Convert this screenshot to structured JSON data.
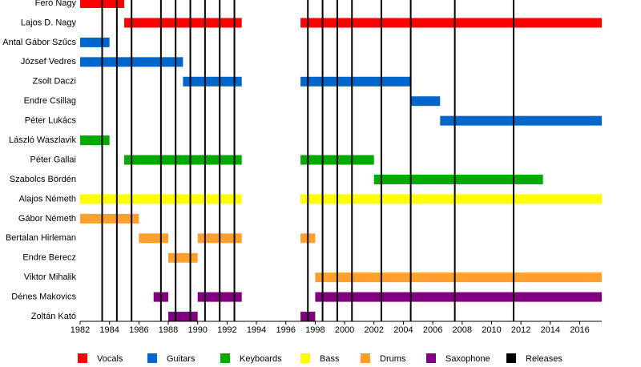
{
  "chart_data": {
    "type": "timeline",
    "categories": [
      "Feró Nagy",
      "Lajos D. Nagy",
      "Antal Gábor Szűcs",
      "József Vedres",
      "Zsolt Daczi",
      "Endre Csillag",
      "Péter Lukács",
      "László Waszlavik",
      "Péter Gallai",
      "Szabolcs Bördén",
      "Alajos Németh",
      "Gábor Németh",
      "Bertalan Hirleman",
      "Endre Berecz",
      "Viktor Mihalik",
      "Dénes Makovics",
      "Zoltán Kató"
    ],
    "series": [
      {
        "name": "Vocals",
        "color": "#ff0000",
        "values": [
          [
            [
              1982,
              1985
            ]
          ],
          [
            [
              1985,
              1993
            ],
            [
              1997,
              2017.5
            ]
          ],
          [],
          [],
          [],
          [],
          [],
          [],
          [],
          [],
          [],
          [],
          [],
          [],
          [],
          [],
          []
        ]
      },
      {
        "name": "Guitars",
        "color": "#0066cc",
        "values": [
          [],
          [],
          [
            [
              1982,
              1984
            ]
          ],
          [
            [
              1982,
              1989
            ]
          ],
          [
            [
              1989,
              1993
            ],
            [
              1997,
              2004.5
            ]
          ],
          [
            [
              2004.5,
              2006.5
            ]
          ],
          [
            [
              2006.5,
              2017.5
            ]
          ],
          [],
          [],
          [],
          [],
          [],
          [],
          [],
          [],
          [],
          []
        ]
      },
      {
        "name": "Keyboards",
        "color": "#00aa00",
        "values": [
          [],
          [],
          [],
          [],
          [],
          [],
          [],
          [
            [
              1982,
              1984
            ]
          ],
          [
            [
              1985,
              1993
            ],
            [
              1997,
              2002
            ]
          ],
          [
            [
              2002,
              2013.5
            ]
          ],
          [],
          [],
          [],
          [],
          [],
          [],
          []
        ]
      },
      {
        "name": "Bass",
        "color": "#ffff00",
        "values": [
          [],
          [],
          [],
          [],
          [],
          [],
          [],
          [],
          [],
          [],
          [
            [
              1982,
              1993
            ],
            [
              1997,
              2017.5
            ]
          ],
          [],
          [],
          [],
          [],
          [],
          []
        ]
      },
      {
        "name": "Drums",
        "color": "#ffa02e",
        "values": [
          [],
          [],
          [],
          [],
          [],
          [],
          [],
          [],
          [],
          [],
          [],
          [
            [
              1982,
              1986
            ]
          ],
          [
            [
              1986,
              1988
            ],
            [
              1990,
              1993
            ],
            [
              1997,
              1998
            ]
          ],
          [
            [
              1988,
              1990
            ]
          ],
          [
            [
              1998,
              2017.5
            ]
          ],
          [],
          []
        ]
      },
      {
        "name": "Saxophone",
        "color": "#800080",
        "values": [
          [],
          [],
          [],
          [],
          [],
          [],
          [],
          [],
          [],
          [],
          [],
          [],
          [],
          [],
          [],
          [
            [
              1987,
              1988
            ],
            [
              1990,
              1993
            ],
            [
              1998,
              2017.5
            ]
          ],
          [
            [
              1988,
              1990
            ],
            [
              1997,
              1998
            ]
          ]
        ]
      }
    ],
    "releases": {
      "name": "Releases",
      "color": "#000000",
      "x": [
        1983.5,
        1984.5,
        1985.5,
        1987.5,
        1988.5,
        1989.5,
        1990.5,
        1991.5,
        1992.5,
        1997.5,
        1998.5,
        1999.5,
        2000.5,
        2002.5,
        2004.5,
        2007.5,
        2011.5
      ]
    },
    "xlim": [
      1982,
      2017.5
    ],
    "xticks": [
      1982,
      1984,
      1986,
      1988,
      1990,
      1992,
      1994,
      1996,
      1998,
      2000,
      2002,
      2004,
      2006,
      2008,
      2010,
      2012,
      2014,
      2016
    ]
  }
}
